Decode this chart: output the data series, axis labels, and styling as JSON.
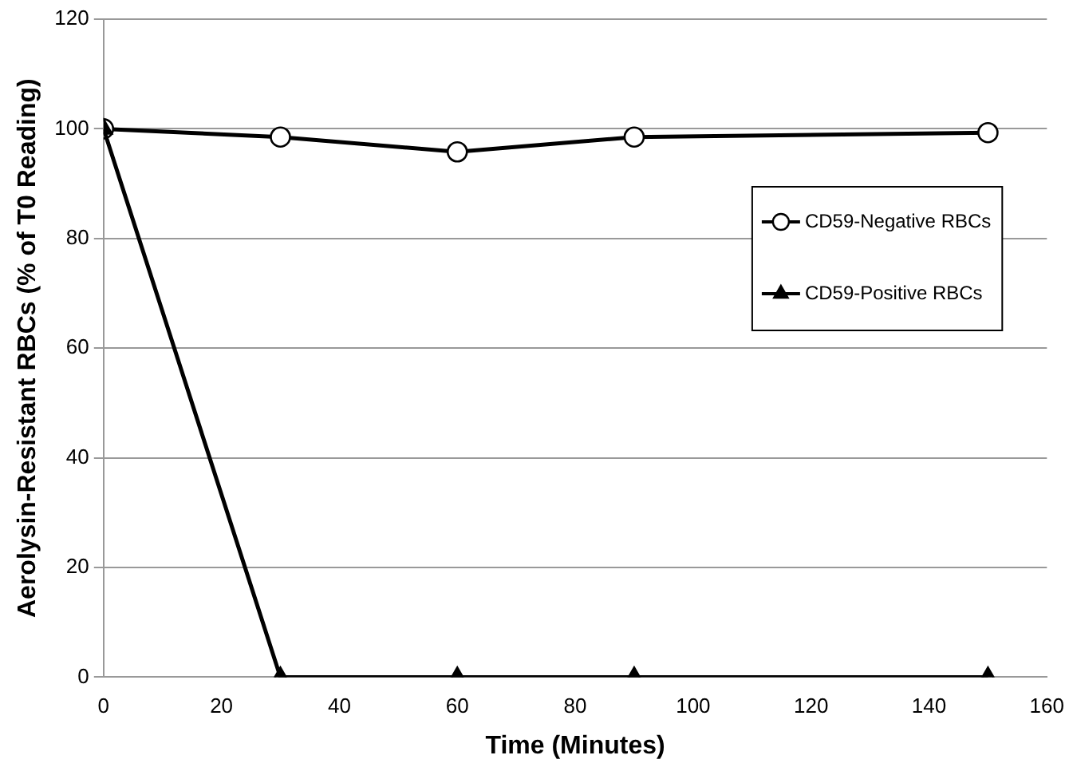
{
  "chart_data": {
    "type": "line",
    "xlabel": "Time (Minutes)",
    "ylabel": "Aerolysin-Resistant RBCs (% of T0 Reading)",
    "x": [
      0,
      30,
      60,
      90,
      150
    ],
    "xlim": [
      0,
      160
    ],
    "xticks": [
      0,
      20,
      40,
      60,
      80,
      100,
      120,
      140,
      160
    ],
    "ylim": [
      0,
      120
    ],
    "yticks": [
      0,
      20,
      40,
      60,
      80,
      100,
      120
    ],
    "grid": "y",
    "legend": "right",
    "series": [
      {
        "name": "CD59-Negative RBCs",
        "color": "#000000",
        "marker": "circle",
        "values": [
          100,
          98.5,
          95.8,
          98.5,
          99.3
        ]
      },
      {
        "name": "CD59-Positive RBCs",
        "color": "#000000",
        "marker": "triangle",
        "values": [
          100,
          0,
          0,
          0,
          0
        ]
      }
    ]
  }
}
